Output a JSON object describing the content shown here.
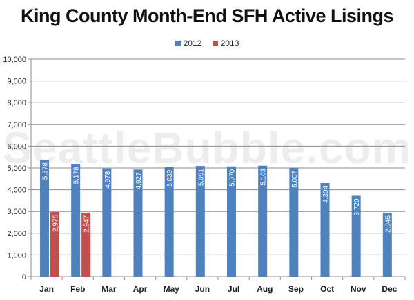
{
  "chart_data": {
    "type": "bar",
    "title": "King County Month-End SFH Active Lisings",
    "xlabel": "",
    "ylabel": "",
    "ylim": [
      0,
      10000
    ],
    "yticks": [
      0,
      1000,
      2000,
      3000,
      4000,
      5000,
      6000,
      7000,
      8000,
      9000,
      10000
    ],
    "ytick_labels": [
      "0",
      "1,000",
      "2,000",
      "3,000",
      "4,000",
      "5,000",
      "6,000",
      "7,000",
      "8,000",
      "9,000",
      "10,000"
    ],
    "categories": [
      "Jan",
      "Feb",
      "Mar",
      "Apr",
      "May",
      "Jun",
      "Jul",
      "Aug",
      "Sep",
      "Oct",
      "Nov",
      "Dec"
    ],
    "series": [
      {
        "name": "2012",
        "color": "#4f81bd",
        "values": [
          5378,
          5178,
          4978,
          4927,
          5039,
          5091,
          5070,
          5103,
          5007,
          4304,
          3720,
          2945
        ],
        "labels": [
          "5,378",
          "5,178",
          "4,978",
          "4,927",
          "5,039",
          "5,091",
          "5,070",
          "5,103",
          "5,007",
          "4,304",
          "3,720",
          "2,945"
        ]
      },
      {
        "name": "2013",
        "color": "#c0504d",
        "values": [
          2975,
          2947,
          null,
          null,
          null,
          null,
          null,
          null,
          null,
          null,
          null,
          null
        ],
        "labels": [
          "2,975",
          "2,947",
          "",
          "",
          "",
          "",
          "",
          "",
          "",
          "",
          "",
          ""
        ]
      }
    ],
    "grid": true,
    "legend_position": "top-center"
  },
  "watermark": "SeattleBubble.com"
}
